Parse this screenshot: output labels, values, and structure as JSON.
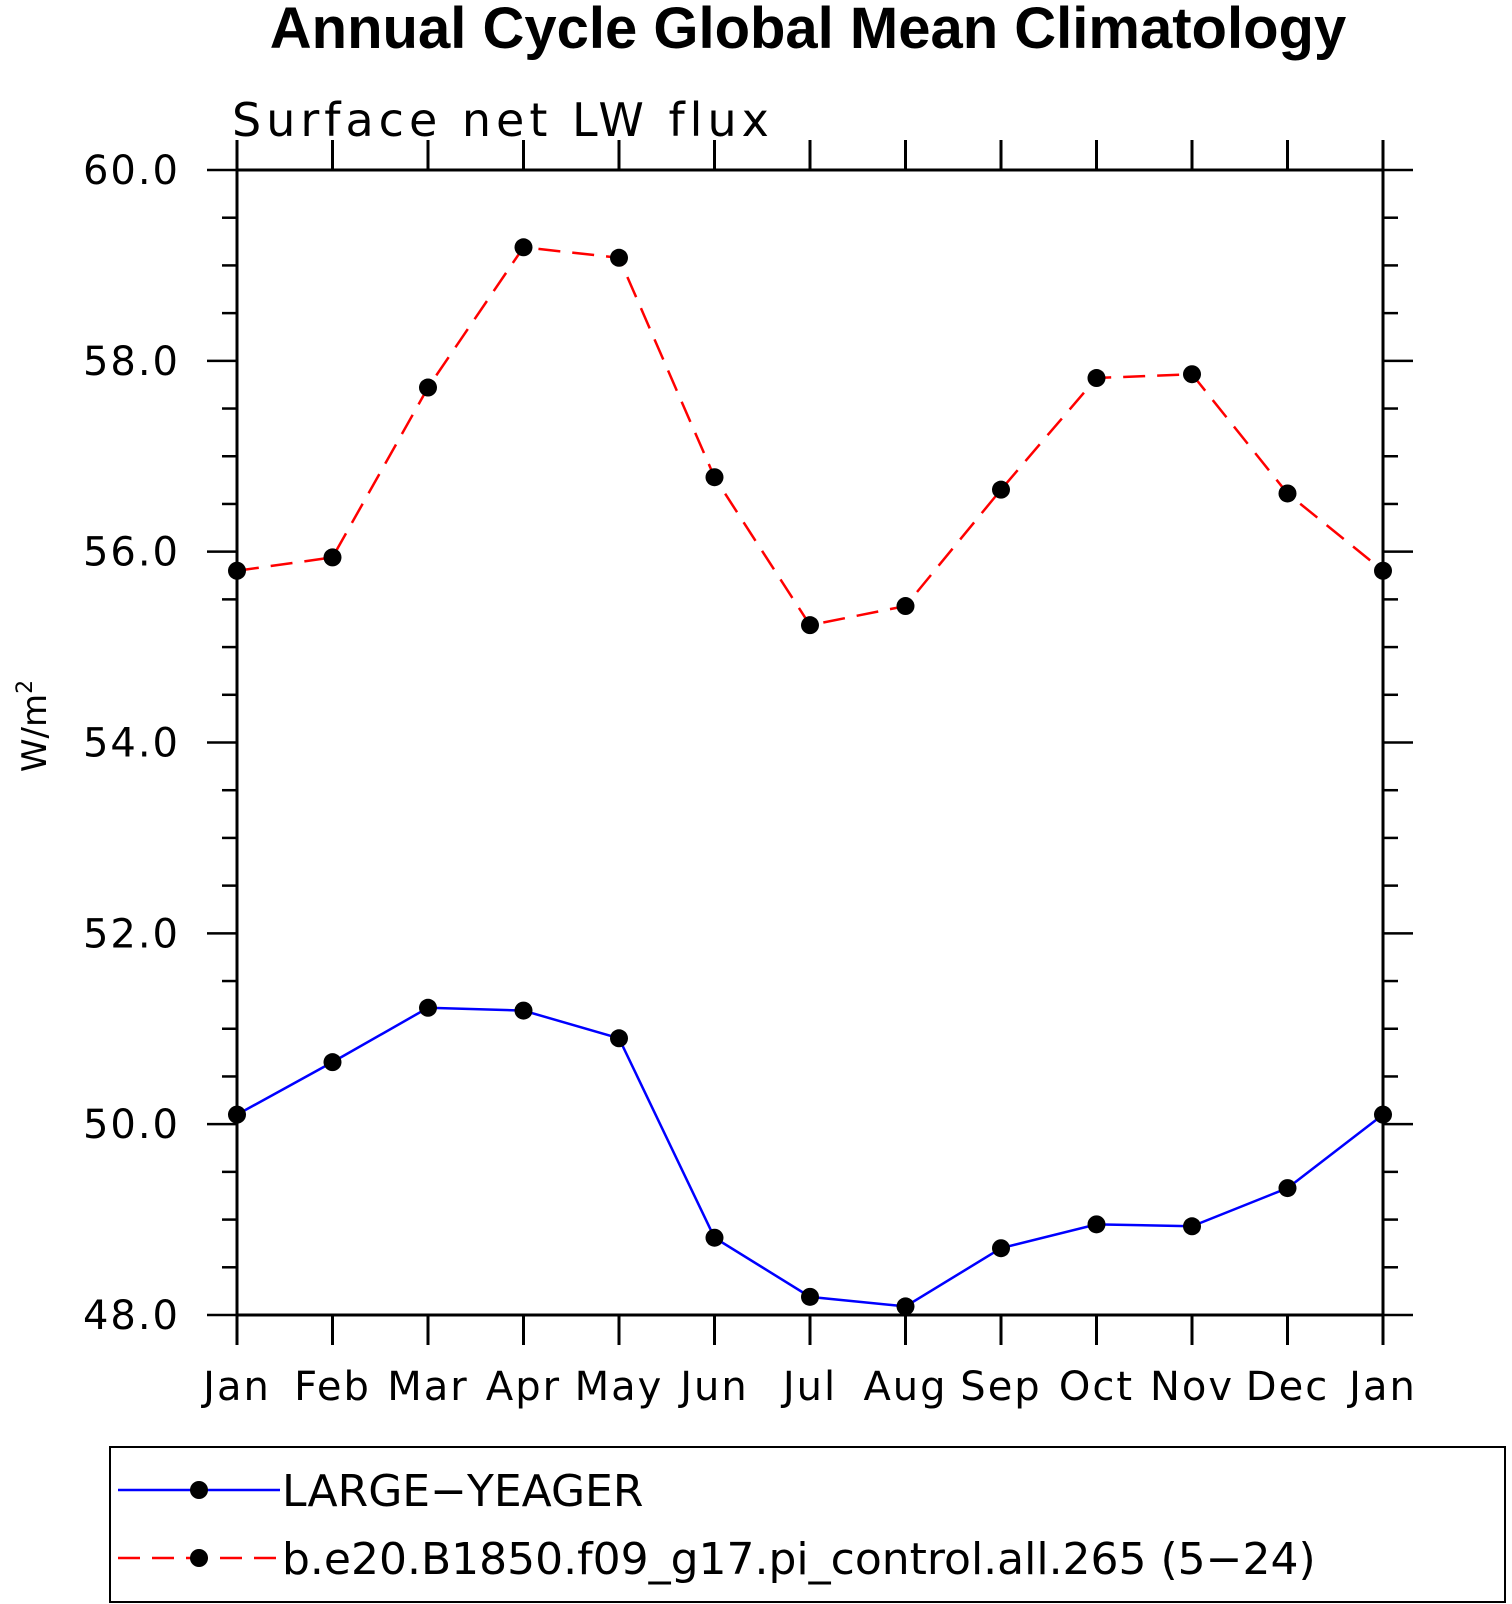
{
  "chart_data": {
    "type": "line",
    "title": "Annual Cycle Global Mean Climatology",
    "subtitle": "Surface net LW flux",
    "xlabel": "",
    "ylabel": "W/m",
    "ylabel_superscript": "2",
    "categories": [
      "Jan",
      "Feb",
      "Mar",
      "Apr",
      "May",
      "Jun",
      "Jul",
      "Aug",
      "Sep",
      "Oct",
      "Nov",
      "Dec",
      "Jan"
    ],
    "ylim": [
      48.0,
      60.0
    ],
    "yticks": [
      "48.0",
      "50.0",
      "52.0",
      "54.0",
      "56.0",
      "58.0",
      "60.0"
    ],
    "grid": false,
    "legend_position": "bottom",
    "series": [
      {
        "name": "LARGE−YEAGER",
        "color": "#0000ff",
        "line_style": "solid",
        "marker": "filled-circle",
        "values": [
          50.1,
          50.65,
          51.22,
          51.19,
          50.9,
          48.81,
          48.19,
          48.09,
          48.7,
          48.95,
          48.93,
          49.33,
          50.1
        ]
      },
      {
        "name": "b.e20.B1850.f09_g17.pi_control.all.265 (5−24)",
        "color": "#ff0000",
        "line_style": "dashed",
        "marker": "filled-circle",
        "values": [
          55.8,
          55.94,
          57.72,
          59.19,
          59.08,
          56.78,
          55.23,
          55.43,
          56.65,
          57.82,
          57.86,
          56.61,
          55.8
        ]
      }
    ]
  }
}
